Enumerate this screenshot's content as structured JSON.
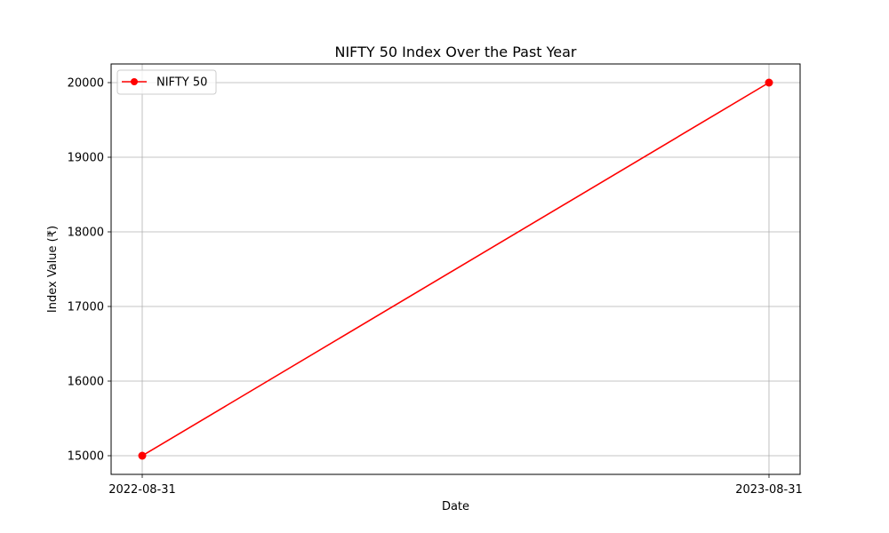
{
  "chart_data": {
    "type": "line",
    "title": "NIFTY 50 Index Over the Past Year",
    "xlabel": "Date",
    "ylabel": "Index Value (₹)",
    "x": [
      "2022-08-31",
      "2023-08-31"
    ],
    "series": [
      {
        "name": "NIFTY 50",
        "values": [
          15000,
          20000
        ],
        "color": "#ff0000",
        "marker": "circle"
      }
    ],
    "yticks": [
      15000,
      16000,
      17000,
      18000,
      19000,
      20000
    ],
    "ylim": [
      14750,
      20250
    ],
    "grid": true,
    "legend": "top-left"
  }
}
